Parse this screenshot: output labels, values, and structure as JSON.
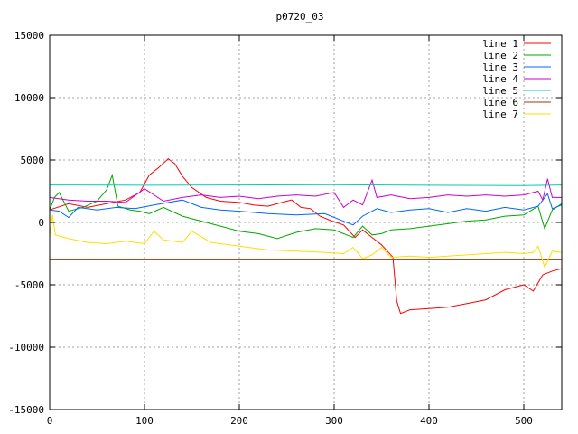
{
  "chart_data": {
    "type": "line",
    "title": "p0720_03",
    "xlabel": "",
    "ylabel": "",
    "xlim": [
      0,
      540
    ],
    "ylim": [
      -15000,
      15000
    ],
    "x_ticks": [
      0,
      100,
      200,
      300,
      400,
      500
    ],
    "y_ticks": [
      -15000,
      -10000,
      -5000,
      0,
      5000,
      10000,
      15000
    ],
    "x_tick_labels": [
      "0",
      "100",
      "200",
      "300",
      "400",
      "500"
    ],
    "y_tick_labels": [
      "-15000",
      "-10000",
      "-5000",
      "0",
      "5000",
      "10000",
      "15000"
    ],
    "grid": true,
    "legend_position": "top-right",
    "series": [
      {
        "name": "line 1",
        "color": "#ff0000",
        "points": [
          [
            0,
            1000
          ],
          [
            20,
            1500
          ],
          [
            40,
            1200
          ],
          [
            60,
            1500
          ],
          [
            80,
            1800
          ],
          [
            95,
            2400
          ],
          [
            105,
            3800
          ],
          [
            115,
            4400
          ],
          [
            125,
            5100
          ],
          [
            132,
            4700
          ],
          [
            140,
            3700
          ],
          [
            150,
            2800
          ],
          [
            165,
            2000
          ],
          [
            180,
            1700
          ],
          [
            200,
            1600
          ],
          [
            215,
            1400
          ],
          [
            230,
            1300
          ],
          [
            245,
            1600
          ],
          [
            255,
            1800
          ],
          [
            265,
            1200
          ],
          [
            275,
            1100
          ],
          [
            285,
            500
          ],
          [
            298,
            100
          ],
          [
            310,
            -200
          ],
          [
            322,
            -1200
          ],
          [
            330,
            -600
          ],
          [
            340,
            -1200
          ],
          [
            350,
            -1800
          ],
          [
            356,
            -2300
          ],
          [
            362,
            -2800
          ],
          [
            366,
            -6300
          ],
          [
            370,
            -7300
          ],
          [
            380,
            -7000
          ],
          [
            400,
            -6900
          ],
          [
            420,
            -6800
          ],
          [
            440,
            -6500
          ],
          [
            460,
            -6200
          ],
          [
            480,
            -5400
          ],
          [
            500,
            -5000
          ],
          [
            510,
            -5500
          ],
          [
            520,
            -4200
          ],
          [
            530,
            -3900
          ],
          [
            540,
            -3700
          ]
        ]
      },
      {
        "name": "line 2",
        "color": "#00aa00",
        "points": [
          [
            0,
            1000
          ],
          [
            5,
            2000
          ],
          [
            10,
            2400
          ],
          [
            20,
            900
          ],
          [
            35,
            1200
          ],
          [
            50,
            1700
          ],
          [
            60,
            2600
          ],
          [
            66,
            3800
          ],
          [
            72,
            1300
          ],
          [
            85,
            1000
          ],
          [
            95,
            900
          ],
          [
            105,
            700
          ],
          [
            120,
            1200
          ],
          [
            140,
            500
          ],
          [
            160,
            100
          ],
          [
            180,
            -300
          ],
          [
            200,
            -700
          ],
          [
            220,
            -900
          ],
          [
            240,
            -1300
          ],
          [
            260,
            -800
          ],
          [
            280,
            -500
          ],
          [
            300,
            -600
          ],
          [
            320,
            -1200
          ],
          [
            330,
            -300
          ],
          [
            340,
            -1000
          ],
          [
            350,
            -900
          ],
          [
            360,
            -600
          ],
          [
            380,
            -500
          ],
          [
            400,
            -300
          ],
          [
            420,
            -100
          ],
          [
            440,
            100
          ],
          [
            460,
            200
          ],
          [
            480,
            500
          ],
          [
            500,
            600
          ],
          [
            515,
            1300
          ],
          [
            522,
            -500
          ],
          [
            530,
            1000
          ],
          [
            540,
            1500
          ]
        ]
      },
      {
        "name": "line 3",
        "color": "#0066ff",
        "points": [
          [
            0,
            1000
          ],
          [
            10,
            900
          ],
          [
            20,
            400
          ],
          [
            30,
            1200
          ],
          [
            50,
            1000
          ],
          [
            70,
            1200
          ],
          [
            90,
            1100
          ],
          [
            110,
            1400
          ],
          [
            140,
            1800
          ],
          [
            160,
            1200
          ],
          [
            180,
            1000
          ],
          [
            200,
            900
          ],
          [
            230,
            700
          ],
          [
            260,
            600
          ],
          [
            290,
            700
          ],
          [
            320,
            -200
          ],
          [
            330,
            500
          ],
          [
            345,
            1100
          ],
          [
            360,
            800
          ],
          [
            380,
            1000
          ],
          [
            400,
            1100
          ],
          [
            420,
            800
          ],
          [
            440,
            1100
          ],
          [
            460,
            900
          ],
          [
            480,
            1200
          ],
          [
            500,
            1000
          ],
          [
            515,
            1300
          ],
          [
            525,
            2300
          ],
          [
            530,
            1100
          ],
          [
            540,
            1400
          ]
        ]
      },
      {
        "name": "line 4",
        "color": "#cc00cc",
        "points": [
          [
            0,
            2000
          ],
          [
            20,
            1800
          ],
          [
            40,
            1700
          ],
          [
            60,
            1700
          ],
          [
            80,
            1600
          ],
          [
            100,
            2700
          ],
          [
            120,
            1700
          ],
          [
            140,
            2000
          ],
          [
            160,
            2200
          ],
          [
            180,
            2000
          ],
          [
            200,
            2100
          ],
          [
            220,
            1900
          ],
          [
            240,
            2100
          ],
          [
            260,
            2200
          ],
          [
            280,
            2100
          ],
          [
            300,
            2400
          ],
          [
            310,
            1200
          ],
          [
            320,
            1800
          ],
          [
            330,
            1400
          ],
          [
            340,
            3400
          ],
          [
            345,
            2000
          ],
          [
            360,
            2200
          ],
          [
            380,
            1900
          ],
          [
            400,
            2000
          ],
          [
            420,
            2200
          ],
          [
            440,
            2100
          ],
          [
            460,
            2200
          ],
          [
            480,
            2100
          ],
          [
            500,
            2200
          ],
          [
            515,
            2500
          ],
          [
            520,
            1800
          ],
          [
            525,
            3500
          ],
          [
            530,
            2000
          ],
          [
            540,
            2000
          ]
        ]
      },
      {
        "name": "line 5",
        "color": "#00ccbb",
        "points": [
          [
            0,
            3000
          ],
          [
            100,
            2980
          ],
          [
            200,
            3000
          ],
          [
            300,
            3020
          ],
          [
            400,
            2980
          ],
          [
            500,
            2950
          ],
          [
            540,
            3000
          ]
        ]
      },
      {
        "name": "line 6",
        "color": "#aa3300",
        "points": [
          [
            0,
            -3000
          ],
          [
            100,
            -3000
          ],
          [
            200,
            -3000
          ],
          [
            300,
            -3000
          ],
          [
            400,
            -3000
          ],
          [
            500,
            -3000
          ],
          [
            540,
            -3000
          ]
        ]
      },
      {
        "name": "line 7",
        "color": "#ffdd00",
        "points": [
          [
            0,
            -1100
          ],
          [
            3,
            600
          ],
          [
            6,
            -1000
          ],
          [
            20,
            -1300
          ],
          [
            40,
            -1600
          ],
          [
            60,
            -1700
          ],
          [
            80,
            -1500
          ],
          [
            100,
            -1700
          ],
          [
            110,
            -700
          ],
          [
            120,
            -1400
          ],
          [
            140,
            -1600
          ],
          [
            150,
            -700
          ],
          [
            170,
            -1600
          ],
          [
            200,
            -1900
          ],
          [
            230,
            -2200
          ],
          [
            260,
            -2300
          ],
          [
            290,
            -2400
          ],
          [
            310,
            -2500
          ],
          [
            320,
            -2000
          ],
          [
            330,
            -2900
          ],
          [
            340,
            -2600
          ],
          [
            350,
            -2000
          ],
          [
            360,
            -2800
          ],
          [
            380,
            -2700
          ],
          [
            400,
            -2800
          ],
          [
            420,
            -2700
          ],
          [
            440,
            -2600
          ],
          [
            460,
            -2500
          ],
          [
            480,
            -2400
          ],
          [
            500,
            -2500
          ],
          [
            510,
            -2400
          ],
          [
            515,
            -1900
          ],
          [
            522,
            -3600
          ],
          [
            530,
            -2300
          ],
          [
            540,
            -2400
          ]
        ]
      }
    ]
  }
}
